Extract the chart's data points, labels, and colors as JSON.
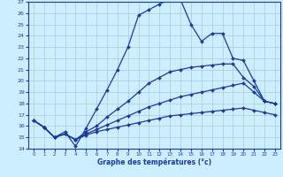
{
  "title": "Graphe des températures (°c)",
  "bg_color": "#cceeff",
  "grid_color": "#aacccc",
  "line_color": "#1a3a9e",
  "xlim": [
    -0.5,
    23.5
  ],
  "ylim": [
    14,
    27
  ],
  "xticks": [
    0,
    1,
    2,
    3,
    4,
    5,
    6,
    7,
    8,
    9,
    10,
    11,
    12,
    13,
    14,
    15,
    16,
    17,
    18,
    19,
    20,
    21,
    22,
    23
  ],
  "yticks": [
    14,
    15,
    16,
    17,
    18,
    19,
    20,
    21,
    22,
    23,
    24,
    25,
    26,
    27
  ],
  "series": [
    {
      "x": [
        0,
        1,
        2,
        3,
        4,
        5,
        6,
        7,
        8,
        9,
        10,
        11,
        12,
        13,
        14,
        15,
        16,
        17,
        18,
        19,
        20,
        21,
        22,
        23
      ],
      "y": [
        16.5,
        15.9,
        15.0,
        15.5,
        14.2,
        15.8,
        17.5,
        19.2,
        21.0,
        23.0,
        25.8,
        26.3,
        26.8,
        27.2,
        27.2,
        25.0,
        23.5,
        24.2,
        24.2,
        22.0,
        21.8,
        20.0,
        18.2,
        18.0
      ]
    },
    {
      "x": [
        0,
        1,
        2,
        3,
        4,
        5,
        6,
        7,
        8,
        9,
        10,
        11,
        12,
        13,
        14,
        15,
        16,
        17,
        18,
        19,
        20,
        21,
        22,
        23
      ],
      "y": [
        16.5,
        15.9,
        15.0,
        15.3,
        14.8,
        15.5,
        16.0,
        16.8,
        17.5,
        18.2,
        19.0,
        19.8,
        20.3,
        20.8,
        21.0,
        21.2,
        21.3,
        21.4,
        21.5,
        21.5,
        20.3,
        19.5,
        18.2,
        18.0
      ]
    },
    {
      "x": [
        0,
        1,
        2,
        3,
        4,
        5,
        6,
        7,
        8,
        9,
        10,
        11,
        12,
        13,
        14,
        15,
        16,
        17,
        18,
        19,
        20,
        21,
        22,
        23
      ],
      "y": [
        16.5,
        15.9,
        15.0,
        15.3,
        14.8,
        15.3,
        15.7,
        16.1,
        16.5,
        16.9,
        17.3,
        17.7,
        18.0,
        18.3,
        18.6,
        18.8,
        19.0,
        19.2,
        19.4,
        19.6,
        19.8,
        19.0,
        18.2,
        18.0
      ]
    },
    {
      "x": [
        0,
        1,
        2,
        3,
        4,
        5,
        6,
        7,
        8,
        9,
        10,
        11,
        12,
        13,
        14,
        15,
        16,
        17,
        18,
        19,
        20,
        21,
        22,
        23
      ],
      "y": [
        16.5,
        15.9,
        15.0,
        15.3,
        14.8,
        15.2,
        15.5,
        15.7,
        15.9,
        16.1,
        16.3,
        16.5,
        16.7,
        16.9,
        17.0,
        17.1,
        17.2,
        17.3,
        17.4,
        17.5,
        17.6,
        17.4,
        17.2,
        17.0
      ]
    }
  ]
}
